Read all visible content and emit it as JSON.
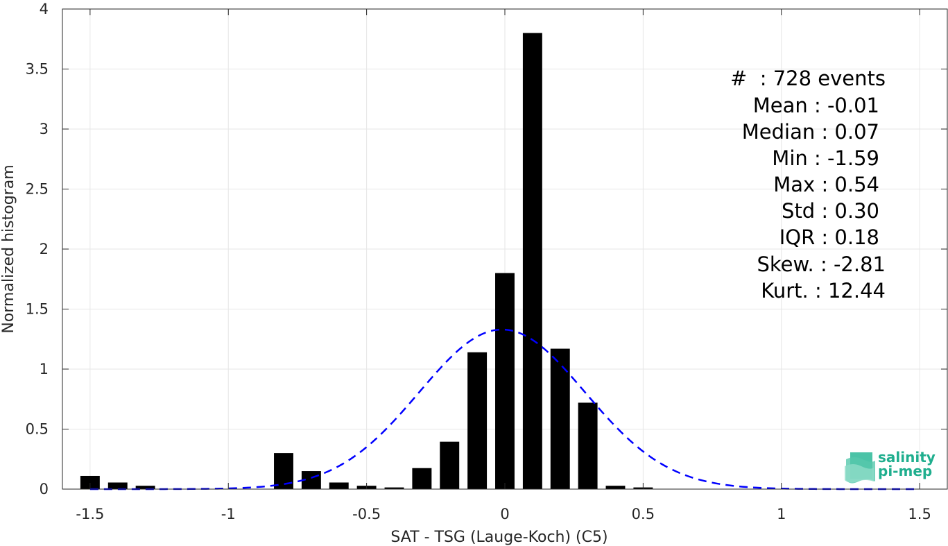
{
  "chart_data": {
    "type": "bar",
    "xlabel": "SAT - TSG (Lauge-Koch) (C5)",
    "ylabel": "Normalized histogram",
    "xlim": [
      -1.6,
      1.6
    ],
    "ylim": [
      0,
      4
    ],
    "xticks": [
      -1.5,
      -1,
      -0.5,
      0,
      0.5,
      1,
      1.5
    ],
    "xtick_labels": [
      "-1.5",
      "-1",
      "-0.5",
      "0",
      "0.5",
      "1",
      "1.5"
    ],
    "yticks": [
      0,
      0.5,
      1,
      1.5,
      2,
      2.5,
      3,
      3.5,
      4
    ],
    "ytick_labels": [
      "0",
      "0.5",
      "1",
      "1.5",
      "2",
      "2.5",
      "3",
      "3.5",
      "4"
    ],
    "grid": true,
    "bar_width": 0.07,
    "bar_color": "#000000",
    "bins": [
      {
        "x": -1.5,
        "y": 0.11
      },
      {
        "x": -1.4,
        "y": 0.055
      },
      {
        "x": -1.3,
        "y": 0.028
      },
      {
        "x": -0.8,
        "y": 0.3
      },
      {
        "x": -0.7,
        "y": 0.15
      },
      {
        "x": -0.6,
        "y": 0.055
      },
      {
        "x": -0.5,
        "y": 0.028
      },
      {
        "x": -0.4,
        "y": 0.014
      },
      {
        "x": -0.3,
        "y": 0.175
      },
      {
        "x": -0.2,
        "y": 0.395
      },
      {
        "x": -0.1,
        "y": 1.14
      },
      {
        "x": 0.0,
        "y": 1.8
      },
      {
        "x": 0.1,
        "y": 3.8
      },
      {
        "x": 0.2,
        "y": 1.17
      },
      {
        "x": 0.3,
        "y": 0.72
      },
      {
        "x": 0.4,
        "y": 0.028
      },
      {
        "x": 0.5,
        "y": 0.014
      }
    ],
    "fit_curve": {
      "type": "gaussian",
      "mean": -0.01,
      "std": 0.3,
      "x_range": [
        -1.5,
        1.5
      ],
      "color": "#0000ff",
      "style": "dashed"
    }
  },
  "stats": {
    "events": "#  : 728 events",
    "mean": "Mean : -0.01",
    "median": "Median : 0.07",
    "min": "Min : -1.59",
    "max": "Max : 0.54",
    "std": "Std : 0.30",
    "iqr": "IQR : 0.18",
    "skew": "Skew. : -2.81",
    "kurt": "Kurt. : 12.44"
  },
  "logo": {
    "line1": "salinity",
    "line2": "pi-mep",
    "icon": "salinity-waves-icon"
  }
}
